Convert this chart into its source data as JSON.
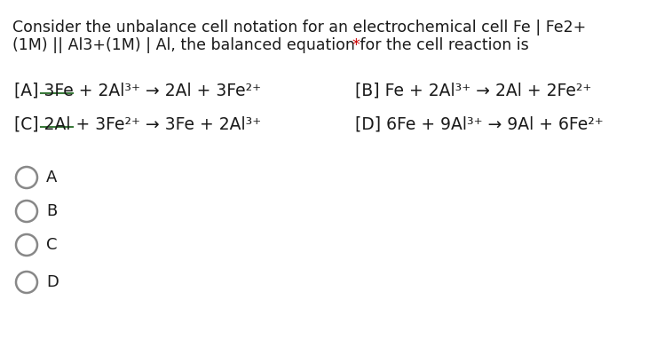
{
  "background_color": "#ffffff",
  "question_line1": "Consider the unbalance cell notation for an electrochemical cell Fe | Fe2+",
  "question_line2": "(1M) || Al3+(1M) | Al, the balanced equation for the cell reaction is ",
  "asterisk": "*",
  "opt_A": "[A] 3Fe + 2Al³⁺ → 2Al + 3Fe²⁺",
  "opt_B": "[B] Fe + 2Al³⁺ → 2Al + 2Fe²⁺",
  "opt_C": "[C] 2Al + 3Fe²⁺ → 3Fe + 2Al³⁺",
  "opt_D": "[D] 6Fe + 9Al³⁺ → 9Al + 6Fe²⁺",
  "choices": [
    "A",
    "B",
    "C",
    "D"
  ],
  "text_color": "#1a1a1a",
  "circle_color": "#888888",
  "underline_color": "#3a7a3a",
  "asterisk_color": "#cc0000",
  "font_size_question": 12.5,
  "font_size_options": 13.5,
  "font_size_choices": 13.0
}
